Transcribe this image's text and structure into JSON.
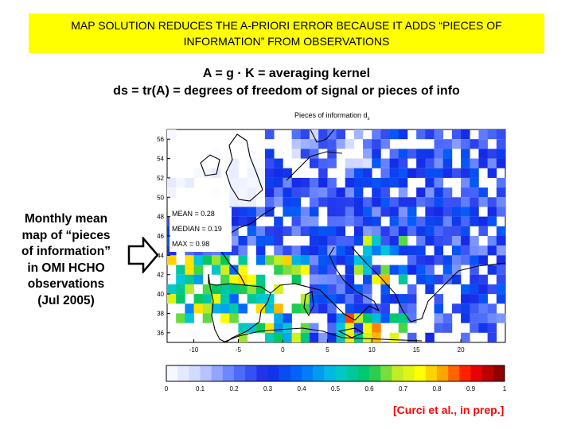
{
  "banner": {
    "line1": "MAP SOLUTION REDUCES THE A-PRIORI ERROR BECAUSE IT ADDS “PIECES OF",
    "line2": "INFORMATION” FROM OBSERVATIONS"
  },
  "equations": {
    "line1": "A = g · K = averaging kernel",
    "line2": "ds = tr(A) = degrees of freedom of signal or pieces of info"
  },
  "caption": {
    "lines": [
      "Monthly mean",
      "map of “pieces",
      "of information”",
      "in OMI HCHO",
      "observations",
      "(Jul 2005)"
    ]
  },
  "citation": "[Curci et al., in prep.]",
  "figure": {
    "title": "Pieces of information d",
    "title_subscript": "s",
    "stats": {
      "mean": "MEAN = 0.28",
      "median": "MEDIAN = 0.19",
      "max": "MAX = 0.98"
    },
    "lat_ticks": [
      "56",
      "54",
      "52",
      "50",
      "48",
      "46",
      "44",
      "42",
      "40",
      "38",
      "36"
    ],
    "lon_ticks": [
      "-10",
      "-5",
      "0",
      "5",
      "10",
      "15",
      "20"
    ],
    "colorbar_ticks": [
      "0",
      "0.1",
      "0.2",
      "0.3",
      "0.4",
      "0.5",
      "0.6",
      "0.7",
      "0.8",
      "0.9",
      "1"
    ],
    "colorbar_range": [
      0,
      1
    ],
    "colors": {
      "low": "#ffffff",
      "mid_blue": "#2060ff",
      "green": "#00c060",
      "yellow": "#ffff00",
      "red": "#ff0000",
      "high": "#7a0000",
      "arrow_fill": "#ffffff",
      "arrow_stroke": "#000000"
    }
  }
}
